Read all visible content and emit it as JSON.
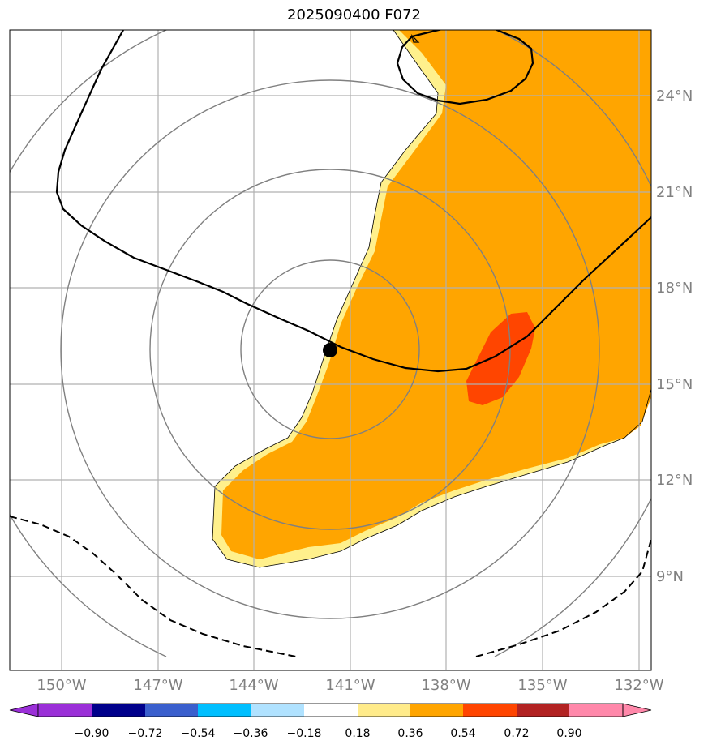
{
  "title": "2025090400 F072",
  "lat_labels": [
    "24°N",
    "21°N",
    "18°N",
    "15°N",
    "12°N",
    "9°N"
  ],
  "lon_labels": [
    "150°W",
    "147°W",
    "144°W",
    "141°W",
    "138°W",
    "135°W",
    "132°W"
  ],
  "colorbar": {
    "ticks": [
      "−0.90",
      "−0.72",
      "−0.54",
      "−0.36",
      "−0.18",
      "0.18",
      "0.36",
      "0.54",
      "0.72",
      "0.90"
    ],
    "colors": [
      "#9b30d8",
      "#00008b",
      "#3a5fcd",
      "#00bfff",
      "#b0e2ff",
      "#ffffff",
      "#ffeb8a",
      "#ffa500",
      "#ff4500",
      "#b22222",
      "#ff88aa"
    ]
  },
  "colors": {
    "fill_light": "#fff08c",
    "fill_main": "#ffa500",
    "fill_strong": "#ff4500",
    "range_rings": "#808080",
    "grid": "#b0b0b0",
    "track": "#000000"
  },
  "storm_center": {
    "lat": "16°N",
    "lon": "141.7°W"
  }
}
